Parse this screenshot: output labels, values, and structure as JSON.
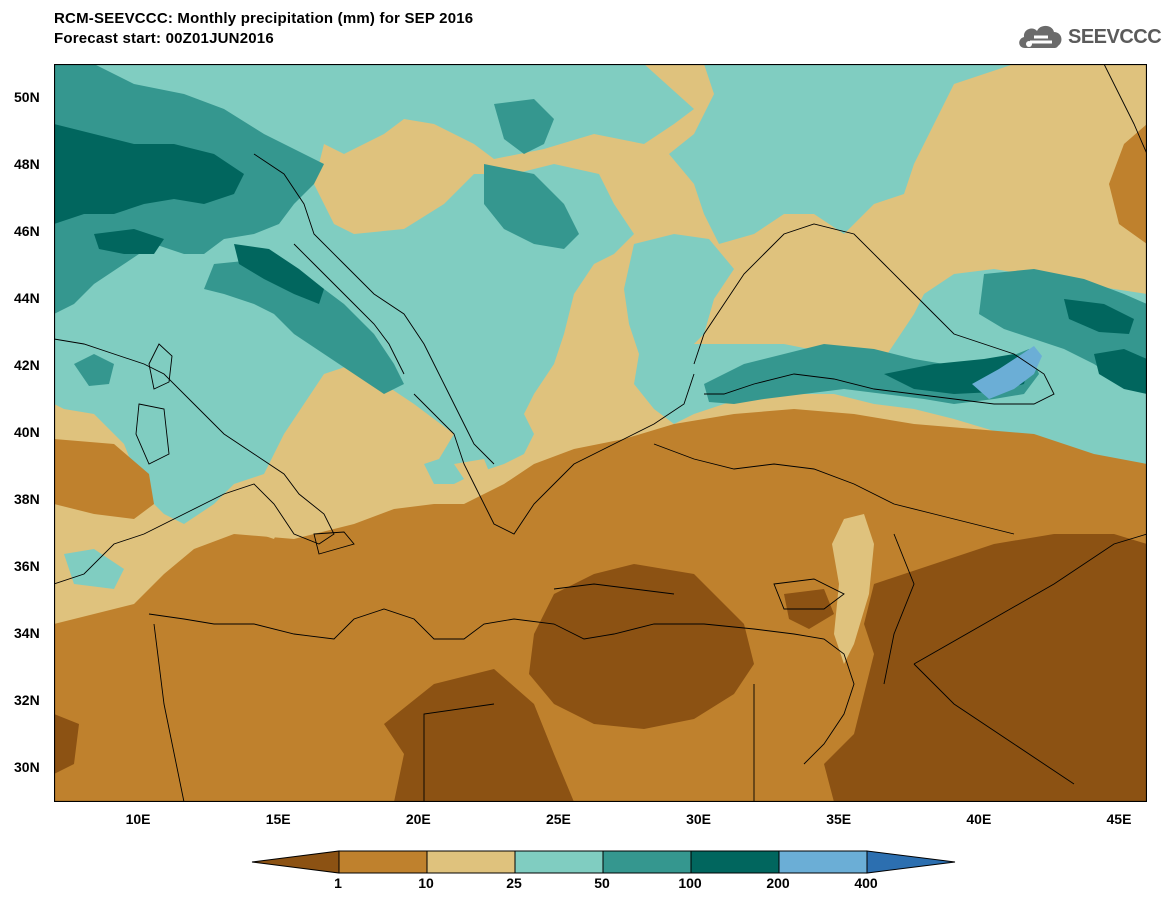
{
  "header": {
    "title": "RCM-SEEVCCC: Monthly precipitation (mm) for SEP 2016",
    "subtitle": "Forecast start: 00Z01JUN2016"
  },
  "logo": {
    "text": "SEEVCCC",
    "icon": "cloud-icon"
  },
  "map": {
    "variable": "Monthly precipitation",
    "units": "mm",
    "extent": {
      "lon_min": 7,
      "lon_max": 46,
      "lat_min": 29,
      "lat_max": 51
    },
    "lat_ticks": [
      "50N",
      "48N",
      "46N",
      "44N",
      "42N",
      "40N",
      "38N",
      "36N",
      "34N",
      "32N",
      "30N"
    ],
    "lat_values": [
      50,
      48,
      46,
      44,
      42,
      40,
      38,
      36,
      34,
      32,
      30
    ],
    "lon_ticks": [
      "10E",
      "15E",
      "20E",
      "25E",
      "30E",
      "35E",
      "40E",
      "45E"
    ],
    "lon_values": [
      10,
      15,
      20,
      25,
      30,
      35,
      40,
      45
    ]
  },
  "colorbar": {
    "labels": [
      "1",
      "10",
      "25",
      "50",
      "100",
      "200",
      "400"
    ],
    "colors": [
      "#8c5213",
      "#bf812d",
      "#dfc27d",
      "#80cdc1",
      "#35978f",
      "#01665e",
      "#6baed6",
      "#2c6fb0"
    ]
  }
}
